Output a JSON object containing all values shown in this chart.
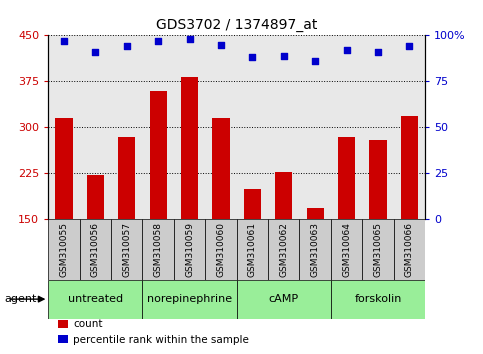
{
  "title": "GDS3702 / 1374897_at",
  "categories": [
    "GSM310055",
    "GSM310056",
    "GSM310057",
    "GSM310058",
    "GSM310059",
    "GSM310060",
    "GSM310061",
    "GSM310062",
    "GSM310063",
    "GSM310064",
    "GSM310065",
    "GSM310066"
  ],
  "bar_values": [
    315,
    223,
    285,
    360,
    383,
    315,
    200,
    228,
    168,
    285,
    280,
    318
  ],
  "dot_values": [
    97,
    91,
    94,
    97,
    98,
    95,
    88,
    89,
    86,
    92,
    91,
    94
  ],
  "bar_color": "#cc0000",
  "dot_color": "#0000cc",
  "ylim_left": [
    150,
    450
  ],
  "ylim_right": [
    0,
    100
  ],
  "yticks_left": [
    150,
    225,
    300,
    375,
    450
  ],
  "yticks_right": [
    0,
    25,
    50,
    75,
    100
  ],
  "groups": [
    {
      "label": "untreated",
      "start": 0,
      "end": 3
    },
    {
      "label": "norepinephrine",
      "start": 3,
      "end": 6
    },
    {
      "label": "cAMP",
      "start": 6,
      "end": 9
    },
    {
      "label": "forskolin",
      "start": 9,
      "end": 12
    }
  ],
  "agent_label": "agent",
  "legend_count_label": "count",
  "legend_pct_label": "percentile rank within the sample",
  "plot_bg": "#e8e8e8",
  "xtick_bg": "#cccccc",
  "group_bg": "#99ee99",
  "tick_label_color_left": "#cc0000",
  "tick_label_color_right": "#0000cc",
  "bar_bottom": 150
}
